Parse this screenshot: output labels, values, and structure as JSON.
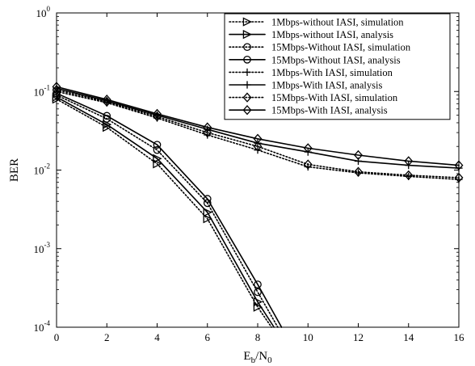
{
  "chart_data": {
    "type": "line",
    "title": "",
    "xlabel": "E_b/N_0",
    "ylabel": "BER",
    "x_scale": "linear",
    "y_scale": "log",
    "xlim": [
      0,
      16
    ],
    "ylim": [
      0.0001,
      1
    ],
    "x_ticks": [
      0,
      2,
      4,
      6,
      8,
      10,
      12,
      14,
      16
    ],
    "x_tick_labels": [
      "0",
      "2",
      "4",
      "6",
      "8",
      "10",
      "12",
      "14",
      "16"
    ],
    "y_ticks": [
      0.0001,
      0.001,
      0.01,
      0.1,
      1
    ],
    "y_tick_labels": [
      {
        "base": "10",
        "exp": "-4"
      },
      {
        "base": "10",
        "exp": "-3"
      },
      {
        "base": "10",
        "exp": "-2"
      },
      {
        "base": "10",
        "exp": "-1"
      },
      {
        "base": "10",
        "exp": "0"
      }
    ],
    "xlabel_parts": {
      "main": "E",
      "sub1": "b",
      "mid": "/N",
      "sub2": "0"
    },
    "grid": false,
    "legend_position": "top-right",
    "series": [
      {
        "name": "1Mbps-without IASI, simulation",
        "marker": "triangle-right",
        "dash": "dotted",
        "x": [
          0,
          2,
          4,
          6,
          8,
          8.55
        ],
        "y": [
          0.08,
          0.035,
          0.012,
          0.0024,
          0.00018,
          0.0001
        ]
      },
      {
        "name": "1Mbps-without IASI, analysis",
        "marker": "triangle-right",
        "dash": "solid",
        "x": [
          0,
          2,
          4,
          6,
          8,
          8.65
        ],
        "y": [
          0.085,
          0.038,
          0.014,
          0.0029,
          0.00021,
          0.0001
        ]
      },
      {
        "name": "15Mbps-Without IASI, simulation",
        "marker": "circle",
        "dash": "dotted",
        "x": [
          0,
          2,
          4,
          6,
          8,
          8.8
        ],
        "y": [
          0.09,
          0.045,
          0.018,
          0.0038,
          0.00028,
          0.0001
        ]
      },
      {
        "name": "15Mbps-Without IASI, analysis",
        "marker": "circle",
        "dash": "solid",
        "x": [
          0,
          2,
          4,
          6,
          8,
          8.95
        ],
        "y": [
          0.095,
          0.049,
          0.021,
          0.0043,
          0.00035,
          0.0001
        ]
      },
      {
        "name": "1Mbps-With IASI, simulation",
        "marker": "plus",
        "dash": "dotted",
        "x": [
          0,
          2,
          4,
          6,
          8,
          10,
          12,
          14,
          16
        ],
        "y": [
          0.1,
          0.072,
          0.046,
          0.028,
          0.018,
          0.011,
          0.0092,
          0.0083,
          0.0076
        ]
      },
      {
        "name": "1Mbps-With IASI, analysis",
        "marker": "plus",
        "dash": "solid",
        "x": [
          0,
          2,
          4,
          6,
          8,
          10,
          12,
          14,
          16
        ],
        "y": [
          0.11,
          0.076,
          0.05,
          0.033,
          0.022,
          0.017,
          0.013,
          0.0115,
          0.0106
        ]
      },
      {
        "name": "15Mbps-With IASI, simulation",
        "marker": "diamond",
        "dash": "dotted",
        "x": [
          0,
          2,
          4,
          6,
          8,
          10,
          12,
          14,
          16
        ],
        "y": [
          0.105,
          0.074,
          0.048,
          0.03,
          0.02,
          0.0118,
          0.0095,
          0.0086,
          0.008
        ]
      },
      {
        "name": "15Mbps-With IASI, analysis",
        "marker": "diamond",
        "dash": "solid",
        "x": [
          0,
          2,
          4,
          6,
          8,
          10,
          12,
          14,
          16
        ],
        "y": [
          0.115,
          0.079,
          0.052,
          0.035,
          0.025,
          0.019,
          0.0155,
          0.013,
          0.0115
        ]
      }
    ]
  }
}
